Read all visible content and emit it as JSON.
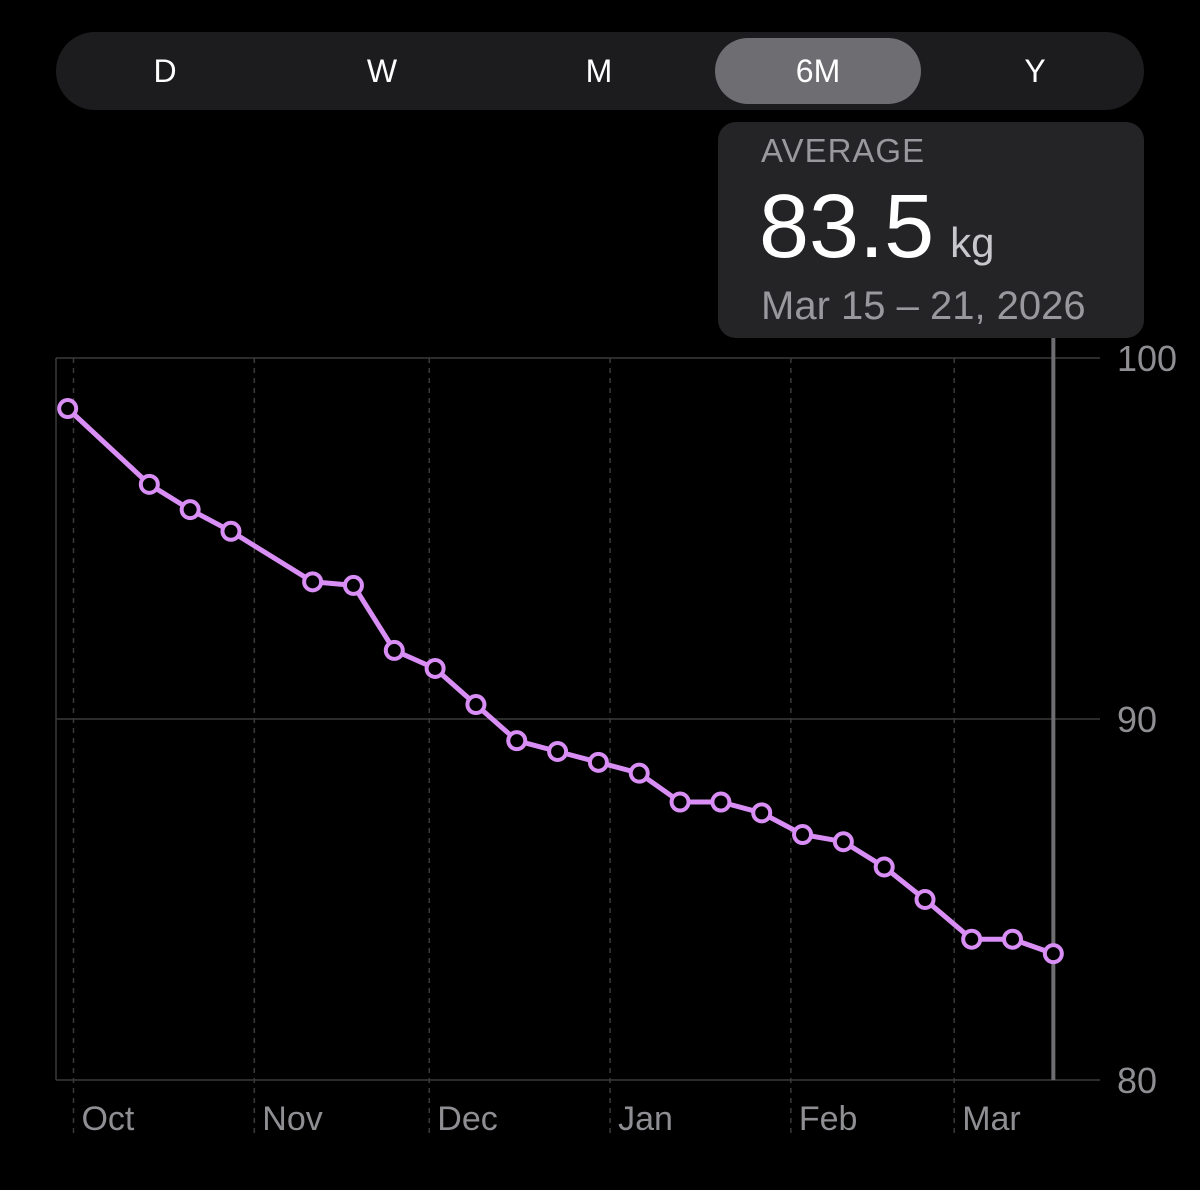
{
  "segments": [
    {
      "label": "D",
      "active": false
    },
    {
      "label": "W",
      "active": false
    },
    {
      "label": "M",
      "active": false
    },
    {
      "label": "6M",
      "active": true
    },
    {
      "label": "Y",
      "active": false
    }
  ],
  "tooltip": {
    "label": "AVERAGE",
    "value": "83.5",
    "unit": "kg",
    "date_range": "Mar 15 – 21, 2026"
  },
  "colors": {
    "line": "#d98ef5",
    "grid": "#3a3a3c",
    "axis_text": "#8e8e93",
    "selection": "#6d6d72"
  },
  "chart_data": {
    "type": "line",
    "title": "",
    "xlabel": "",
    "ylabel": "",
    "ylim": [
      80,
      100
    ],
    "y_ticks": [
      "100",
      "90",
      "80"
    ],
    "x_tick_labels": [
      "Oct",
      "Nov",
      "Dec",
      "Jan",
      "Feb",
      "Mar"
    ],
    "x_tick_dates": [
      "2025-10-01",
      "2025-11-01",
      "2025-12-01",
      "2026-01-01",
      "2026-02-01",
      "2026-03-01"
    ],
    "x_range": [
      "2025-09-28",
      "2026-03-26"
    ],
    "selected_point_x": "2026-03-18",
    "grid": true,
    "series": [
      {
        "name": "",
        "unit": "kg",
        "x": [
          "2025-09-30",
          "2025-10-14",
          "2025-10-21",
          "2025-10-28",
          "2025-11-11",
          "2025-11-18",
          "2025-11-25",
          "2025-12-02",
          "2025-12-09",
          "2025-12-16",
          "2025-12-23",
          "2025-12-30",
          "2026-01-06",
          "2026-01-13",
          "2026-01-20",
          "2026-01-27",
          "2026-02-03",
          "2026-02-10",
          "2026-02-17",
          "2026-02-24",
          "2026-03-04",
          "2026-03-11",
          "2026-03-18"
        ],
        "values": [
          98.6,
          96.5,
          95.8,
          95.2,
          93.8,
          93.7,
          91.9,
          91.4,
          90.4,
          89.4,
          89.1,
          88.8,
          88.5,
          87.7,
          87.7,
          87.4,
          86.8,
          86.6,
          85.9,
          85.0,
          83.9,
          83.9,
          83.5
        ]
      }
    ]
  }
}
